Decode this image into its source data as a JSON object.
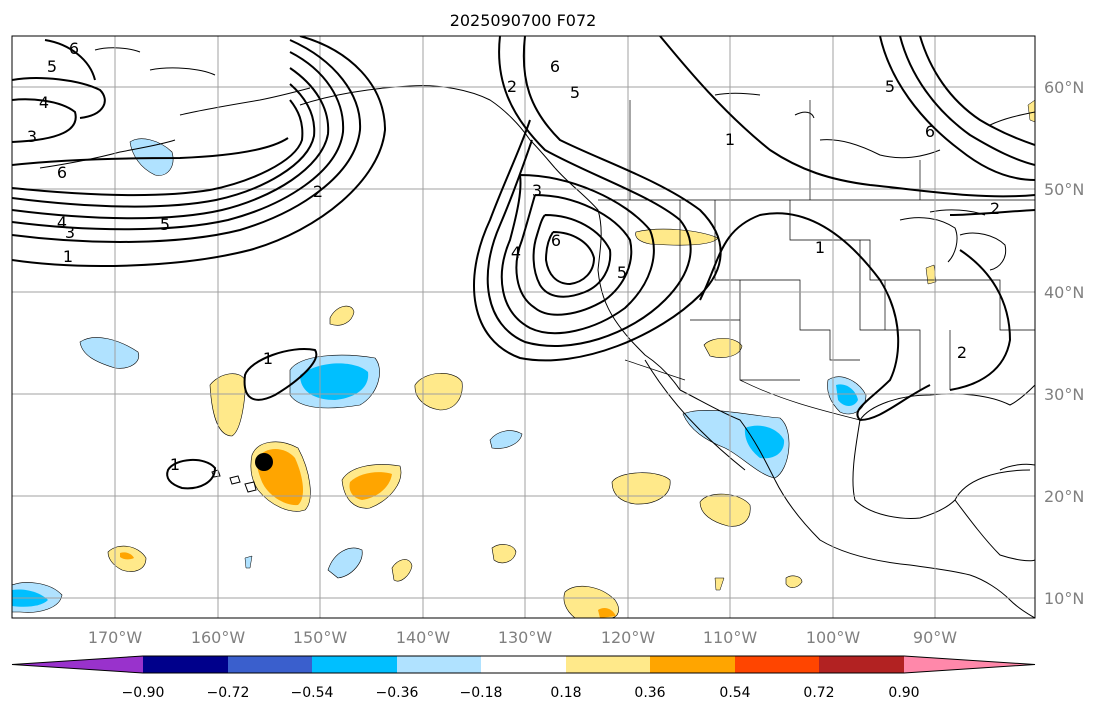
{
  "title": "2025090700 F072",
  "lat_labels": [
    "60°N",
    "50°N",
    "40°N",
    "30°N",
    "20°N",
    "10°N"
  ],
  "lon_labels": [
    "170°W",
    "160°W",
    "150°W",
    "140°W",
    "130°W",
    "120°W",
    "110°W",
    "100°W",
    "90°W"
  ],
  "colorbar": {
    "ticks": [
      "−0.90",
      "−0.72",
      "−0.54",
      "−0.36",
      "−0.18",
      "0.18",
      "0.36",
      "0.54",
      "0.72",
      "0.90"
    ],
    "colors": [
      "#9932cc",
      "#00008b",
      "#3a5fcd",
      "#00bfff",
      "#b0e2ff",
      "#ffffff",
      "#ffe98a",
      "#ffa500",
      "#ff4500",
      "#b22222",
      "#ff88aa"
    ]
  },
  "contour_labels": [
    "1",
    "2",
    "3",
    "4",
    "5",
    "6"
  ],
  "marker": "storm-center"
}
